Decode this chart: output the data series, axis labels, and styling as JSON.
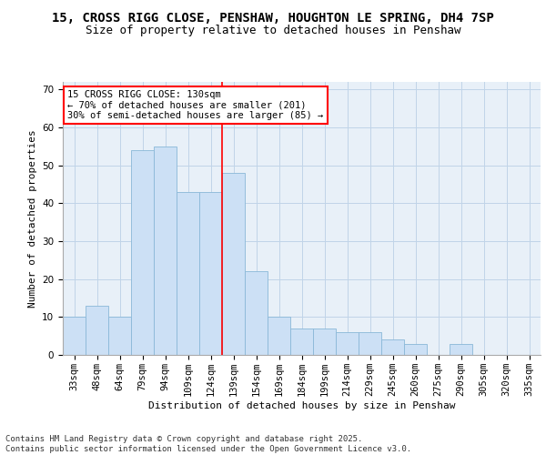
{
  "title_line1": "15, CROSS RIGG CLOSE, PENSHAW, HOUGHTON LE SPRING, DH4 7SP",
  "title_line2": "Size of property relative to detached houses in Penshaw",
  "xlabel": "Distribution of detached houses by size in Penshaw",
  "ylabel": "Number of detached properties",
  "categories": [
    "33sqm",
    "48sqm",
    "64sqm",
    "79sqm",
    "94sqm",
    "109sqm",
    "124sqm",
    "139sqm",
    "154sqm",
    "169sqm",
    "184sqm",
    "199sqm",
    "214sqm",
    "229sqm",
    "245sqm",
    "260sqm",
    "275sqm",
    "290sqm",
    "305sqm",
    "320sqm",
    "335sqm"
  ],
  "values": [
    10,
    13,
    10,
    54,
    55,
    43,
    43,
    48,
    22,
    10,
    7,
    7,
    6,
    6,
    4,
    3,
    0,
    3,
    0,
    0,
    0
  ],
  "bar_color": "#cce0f5",
  "bar_edge_color": "#8ab8d8",
  "grid_color": "#c0d4e8",
  "background_color": "#e8f0f8",
  "vline_color": "red",
  "vline_pos": 6.5,
  "annotation_text": "15 CROSS RIGG CLOSE: 130sqm\n← 70% of detached houses are smaller (201)\n30% of semi-detached houses are larger (85) →",
  "annotation_box_color": "white",
  "annotation_box_edge_color": "red",
  "ylim": [
    0,
    72
  ],
  "yticks": [
    0,
    10,
    20,
    30,
    40,
    50,
    60,
    70
  ],
  "footer_text": "Contains HM Land Registry data © Crown copyright and database right 2025.\nContains public sector information licensed under the Open Government Licence v3.0.",
  "title_fontsize": 10,
  "subtitle_fontsize": 9,
  "axis_label_fontsize": 8,
  "tick_fontsize": 7.5,
  "annotation_fontsize": 7.5,
  "footer_fontsize": 6.5
}
